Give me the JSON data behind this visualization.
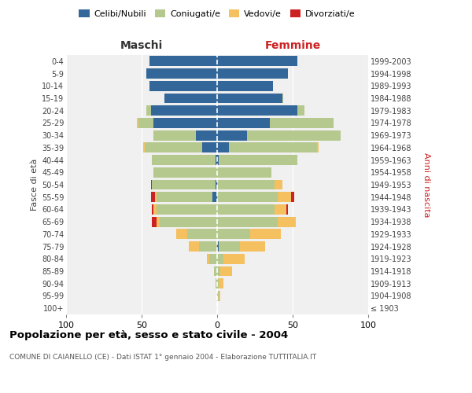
{
  "age_groups": [
    "100+",
    "95-99",
    "90-94",
    "85-89",
    "80-84",
    "75-79",
    "70-74",
    "65-69",
    "60-64",
    "55-59",
    "50-54",
    "45-49",
    "40-44",
    "35-39",
    "30-34",
    "25-29",
    "20-24",
    "15-19",
    "10-14",
    "5-9",
    "0-4"
  ],
  "birth_years": [
    "≤ 1903",
    "1904-1908",
    "1909-1913",
    "1914-1918",
    "1919-1923",
    "1924-1928",
    "1929-1933",
    "1934-1938",
    "1939-1943",
    "1944-1948",
    "1949-1953",
    "1954-1958",
    "1959-1963",
    "1964-1968",
    "1969-1973",
    "1974-1978",
    "1979-1983",
    "1984-1988",
    "1989-1993",
    "1994-1998",
    "1999-2003"
  ],
  "maschi": {
    "celibi": [
      0,
      0,
      0,
      0,
      0,
      0,
      0,
      0,
      0,
      3,
      1,
      0,
      1,
      10,
      14,
      42,
      44,
      35,
      45,
      47,
      45
    ],
    "coniugati": [
      0,
      0,
      1,
      2,
      5,
      12,
      20,
      38,
      40,
      37,
      42,
      42,
      42,
      38,
      28,
      10,
      3,
      0,
      0,
      0,
      0
    ],
    "vedovi": [
      0,
      0,
      0,
      0,
      2,
      7,
      7,
      2,
      2,
      1,
      0,
      0,
      0,
      1,
      0,
      1,
      0,
      0,
      0,
      0,
      0
    ],
    "divorziati": [
      0,
      0,
      0,
      0,
      0,
      0,
      0,
      3,
      1,
      3,
      1,
      0,
      0,
      0,
      0,
      0,
      0,
      0,
      0,
      0,
      0
    ]
  },
  "femmine": {
    "nubili": [
      0,
      0,
      0,
      0,
      0,
      1,
      0,
      0,
      0,
      0,
      0,
      0,
      1,
      8,
      20,
      35,
      53,
      43,
      37,
      47,
      53
    ],
    "coniugate": [
      0,
      1,
      1,
      2,
      4,
      14,
      22,
      40,
      38,
      40,
      38,
      36,
      52,
      58,
      62,
      42,
      5,
      1,
      0,
      0,
      0
    ],
    "vedove": [
      0,
      1,
      3,
      8,
      14,
      17,
      20,
      12,
      8,
      9,
      5,
      0,
      0,
      1,
      0,
      0,
      0,
      0,
      0,
      0,
      0
    ],
    "divorziate": [
      0,
      0,
      0,
      0,
      0,
      0,
      0,
      0,
      1,
      2,
      0,
      0,
      0,
      0,
      0,
      0,
      0,
      0,
      0,
      0,
      0
    ]
  },
  "colors": {
    "celibi_nubili": "#336699",
    "coniugati_e": "#b5c98e",
    "vedovi_e": "#f5c060",
    "divorziati_e": "#cc2222"
  },
  "xlim": 100,
  "title": "Popolazione per età, sesso e stato civile - 2004",
  "subtitle": "COMUNE DI CAIANELLO (CE) - Dati ISTAT 1° gennaio 2004 - Elaborazione TUTTITALIA.IT",
  "ylabel_left": "Fasce di età",
  "ylabel_right": "Anni di nascita",
  "xlabel_left": "Maschi",
  "xlabel_right": "Femmine",
  "bg_color": "#f0f0f0",
  "grid_color": "#ffffff"
}
